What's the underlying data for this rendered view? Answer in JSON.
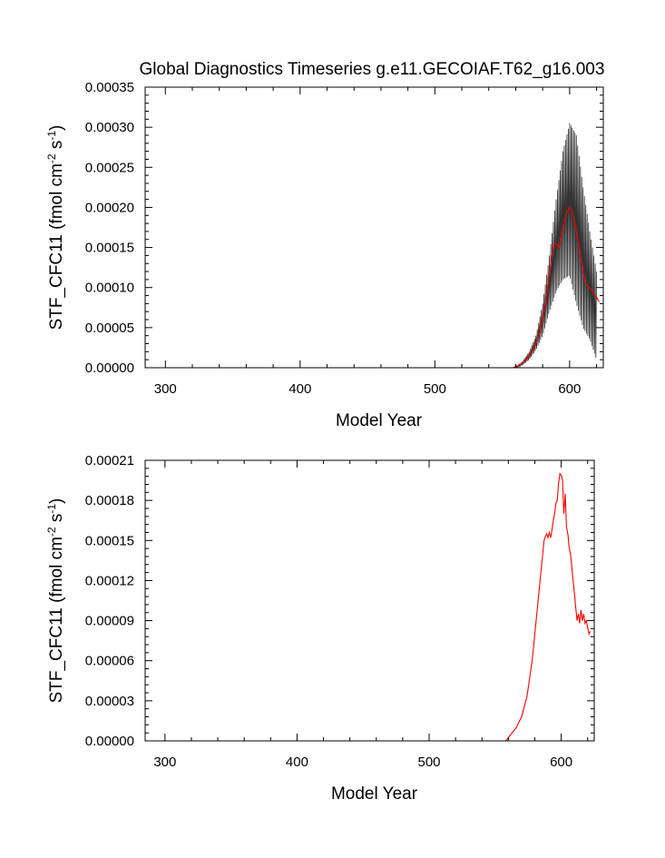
{
  "title": "Global Diagnostics Timeseries g.e11.GECOIAF.T62_g16.003",
  "colors": {
    "monthly": "#000000",
    "annual": "#ff0000",
    "frame": "#000000"
  },
  "chart_data": [
    {
      "type": "line",
      "title": "Global Diagnostics Timeseries g.e11.GECOIAF.T62_g16.003",
      "xlabel": "Model Year",
      "ylabel": {
        "prefix": "STF_CFC11 (fmol cm",
        "sup1": "-2",
        "mid": " s",
        "sup2": "-1",
        "suffix": ")"
      },
      "xlim": [
        285,
        625
      ],
      "ylim": [
        0,
        0.00035
      ],
      "xticks": [
        300,
        400,
        500,
        600
      ],
      "xtick_labels": [
        "300",
        "400",
        "500",
        "600"
      ],
      "yticks": [
        0,
        5e-05,
        0.0001,
        0.00015,
        0.0002,
        0.00025,
        0.0003,
        0.00035
      ],
      "ytick_labels": [
        "0.00000",
        "0.00005",
        "0.00010",
        "0.00015",
        "0.00020",
        "0.00025",
        "0.00030",
        "0.00035"
      ],
      "grid": false,
      "series": [
        {
          "style": "monthly-envelope",
          "x": [
            560,
            565,
            570,
            575,
            580,
            585,
            590,
            595,
            600,
            605,
            610,
            615,
            620
          ],
          "y_min": [
            0,
            3e-06,
            1e-05,
            2.2e-05,
            4e-05,
            7e-05,
            9.5e-05,
            0.00011,
            0.000115,
            8e-05,
            5e-05,
            3.5e-05,
            1e-05
          ],
          "y_max": [
            0,
            8e-06,
            2e-05,
            4e-05,
            8e-05,
            0.00014,
            0.00021,
            0.00027,
            0.000305,
            0.00029,
            0.000225,
            0.00017,
            0.00012
          ]
        },
        {
          "style": "annual",
          "x": [
            558,
            562,
            566,
            570,
            574,
            578,
            582,
            586,
            588,
            590,
            592,
            594,
            596,
            598,
            600,
            602,
            604,
            606,
            608,
            610,
            612,
            614,
            616,
            618,
            620,
            622
          ],
          "y": [
            0,
            3e-06,
            7e-06,
            1.4e-05,
            2.5e-05,
            4.5e-05,
            8e-05,
            0.00013,
            0.000153,
            0.000155,
            0.00015,
            0.000165,
            0.00018,
            0.000195,
            0.0002,
            0.000195,
            0.00018,
            0.00016,
            0.00014,
            0.00012,
            0.000105,
            0.0001,
            9.8e-05,
            9.2e-05,
            8.8e-05,
            8.2e-05
          ]
        }
      ]
    },
    {
      "type": "line",
      "xlabel": "Model Year",
      "ylabel": {
        "prefix": "STF_CFC11 (fmol cm",
        "sup1": "-2",
        "mid": " s",
        "sup2": "-1",
        "suffix": ")"
      },
      "xlim": [
        285,
        625
      ],
      "ylim": [
        0,
        0.00021
      ],
      "xticks": [
        300,
        400,
        500,
        600
      ],
      "xtick_labels": [
        "300",
        "400",
        "500",
        "600"
      ],
      "yticks": [
        0,
        3e-05,
        6e-05,
        9e-05,
        0.00012,
        0.00015,
        0.00018,
        0.00021
      ],
      "ytick_labels": [
        "0.00000",
        "0.00003",
        "0.00006",
        "0.00009",
        "0.00012",
        "0.00015",
        "0.00018",
        "0.00021"
      ],
      "grid": false,
      "series": [
        {
          "style": "annual",
          "x": [
            558,
            562,
            566,
            570,
            574,
            578,
            580,
            582,
            584,
            586,
            587,
            588,
            589,
            590,
            591,
            592,
            593,
            594,
            595,
            596,
            597,
            598,
            599,
            600,
            601,
            602,
            603,
            604,
            605,
            606,
            607,
            608,
            609,
            610,
            611,
            612,
            613,
            614,
            615,
            616,
            617,
            618,
            619,
            620,
            621,
            622
          ],
          "y": [
            0,
            5e-06,
            1e-05,
            1.8e-05,
            3.3e-05,
            6e-05,
            8e-05,
            0.0001,
            0.00012,
            0.00014,
            0.00015,
            0.000153,
            0.000155,
            0.000152,
            0.000156,
            0.000152,
            0.000158,
            0.000165,
            0.00017,
            0.000178,
            0.00018,
            0.000193,
            0.0002,
            0.000199,
            0.000195,
            0.00017,
            0.000185,
            0.00016,
            0.000155,
            0.000145,
            0.00014,
            0.00013,
            0.00012,
            0.00011,
            0.0001,
            9e-05,
            9.5e-05,
            8.8e-05,
            9.8e-05,
            9e-05,
            9.5e-05,
            8.8e-05,
            9e-05,
            8.5e-05,
            8e-05,
            8.2e-05
          ]
        }
      ]
    }
  ]
}
